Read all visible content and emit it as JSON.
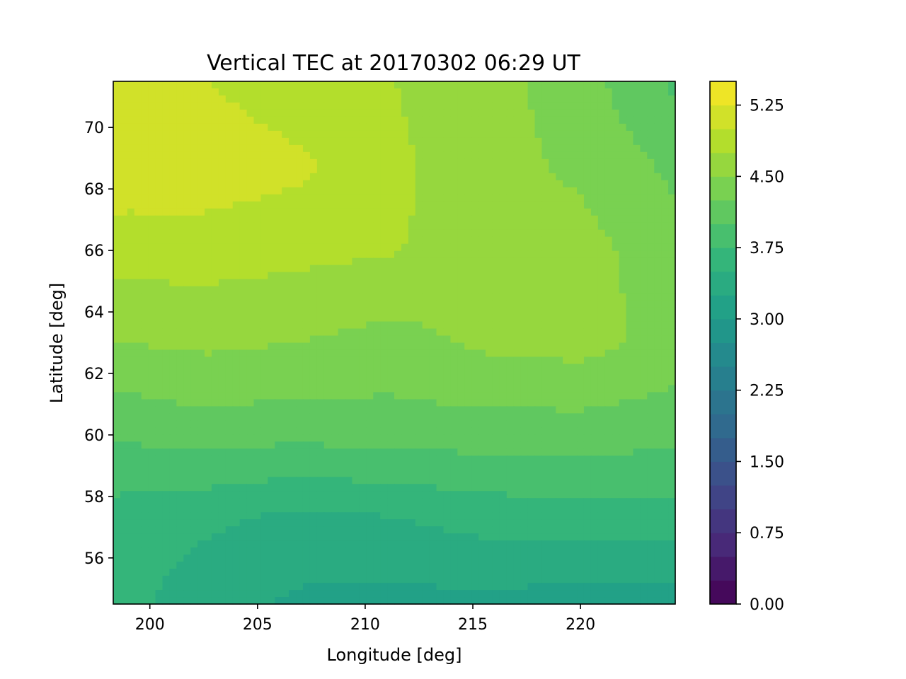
{
  "chart_data": {
    "type": "contourf",
    "title": "Vertical TEC at 20170302 06:29 UT",
    "xlabel": "Longitude [deg]",
    "ylabel": "Latitude [deg]",
    "xlim": [
      198.3,
      224.4
    ],
    "ylim": [
      54.5,
      71.5
    ],
    "xticks": [
      200,
      205,
      210,
      215,
      220
    ],
    "yticks": [
      56,
      58,
      60,
      62,
      64,
      66,
      68,
      70
    ],
    "colorbar": {
      "colormap": "viridis",
      "range": [
        0.0,
        5.5
      ],
      "level_step": 0.25,
      "tick_labels": [
        "0.00",
        "0.75",
        "1.50",
        "2.25",
        "3.00",
        "3.75",
        "4.50",
        "5.25"
      ],
      "stops": [
        "#440154",
        "#482878",
        "#3e4989",
        "#31688e",
        "#26828e",
        "#1f9e89",
        "#35b779",
        "#6ece58",
        "#b5de2b",
        "#fde725"
      ]
    },
    "field_samples": {
      "lon": [
        198.3,
        202.65,
        207.0,
        211.35,
        215.7,
        220.05,
        224.4
      ],
      "lat": [
        71.5,
        68.667,
        65.833,
        63.0,
        60.167,
        57.333,
        54.5
      ],
      "tec": [
        [
          5.1,
          5.0,
          4.85,
          4.75,
          4.6,
          4.35,
          3.95
        ],
        [
          5.15,
          5.15,
          5.05,
          4.8,
          4.6,
          4.45,
          4.2
        ],
        [
          4.85,
          4.85,
          4.8,
          4.75,
          4.7,
          4.6,
          4.35
        ],
        [
          4.5,
          4.55,
          4.5,
          4.4,
          4.55,
          4.6,
          4.4
        ],
        [
          4.05,
          4.15,
          4.1,
          4.15,
          4.15,
          4.15,
          4.1
        ],
        [
          3.65,
          3.55,
          3.45,
          3.5,
          3.6,
          3.65,
          3.65
        ],
        [
          3.6,
          3.35,
          3.2,
          3.15,
          3.2,
          3.1,
          3.15
        ]
      ]
    }
  }
}
